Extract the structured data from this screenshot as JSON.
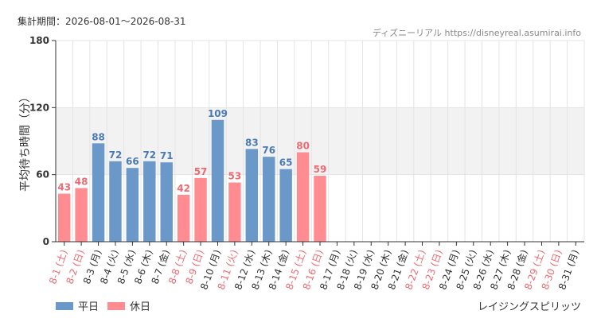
{
  "header": {
    "period_label": "集計期間：2026-08-01〜2026-08-31",
    "site_credit": "ディズニーリアル https://disneyreal.asumirai.info"
  },
  "footer": {
    "attraction_name": "レイジングスピリッツ"
  },
  "colors": {
    "weekday": "#6a98c9",
    "holiday": "#ff8c91",
    "weekday_label": "#4a7ab5",
    "holiday_label": "#ee6a72",
    "band": "#f2f2f2",
    "grid": "#e4e4e4",
    "axis": "#333333"
  },
  "chart_data": {
    "type": "bar",
    "title": "",
    "ylabel": "平均待ち時間（分）",
    "xlabel": "",
    "ylim": [
      0,
      180
    ],
    "yticks": [
      0,
      60,
      120,
      180
    ],
    "highlight_band": [
      60,
      120
    ],
    "grid": true,
    "legend_position": "bottom-left",
    "legend": [
      {
        "name": "平日",
        "color": "#6a98c9"
      },
      {
        "name": "休日",
        "color": "#ff8c91"
      }
    ],
    "categories": [
      "8-1 (土)",
      "8-2 (日)",
      "8-3 (月)",
      "8-4 (火)",
      "8-5 (水)",
      "8-6 (木)",
      "8-7 (金)",
      "8-8 (土)",
      "8-9 (日)",
      "8-10 (月)",
      "8-11 (火)",
      "8-12 (水)",
      "8-13 (木)",
      "8-14 (金)",
      "8-15 (土)",
      "8-16 (日)",
      "8-17 (月)",
      "8-18 (火)",
      "8-19 (水)",
      "8-20 (木)",
      "8-21 (金)",
      "8-22 (土)",
      "8-23 (日)",
      "8-24 (月)",
      "8-25 (火)",
      "8-26 (水)",
      "8-27 (木)",
      "8-28 (金)",
      "8-29 (土)",
      "8-30 (日)",
      "8-31 (月)"
    ],
    "day_type": [
      "holiday",
      "holiday",
      "weekday",
      "weekday",
      "weekday",
      "weekday",
      "weekday",
      "holiday",
      "holiday",
      "weekday",
      "holiday",
      "weekday",
      "weekday",
      "weekday",
      "holiday",
      "holiday",
      "weekday",
      "weekday",
      "weekday",
      "weekday",
      "weekday",
      "holiday",
      "holiday",
      "weekday",
      "weekday",
      "weekday",
      "weekday",
      "weekday",
      "holiday",
      "holiday",
      "weekday"
    ],
    "values": [
      43,
      48,
      88,
      72,
      66,
      72,
      71,
      42,
      57,
      109,
      53,
      83,
      76,
      65,
      80,
      59,
      null,
      null,
      null,
      null,
      null,
      null,
      null,
      null,
      null,
      null,
      null,
      null,
      null,
      null,
      null
    ]
  }
}
